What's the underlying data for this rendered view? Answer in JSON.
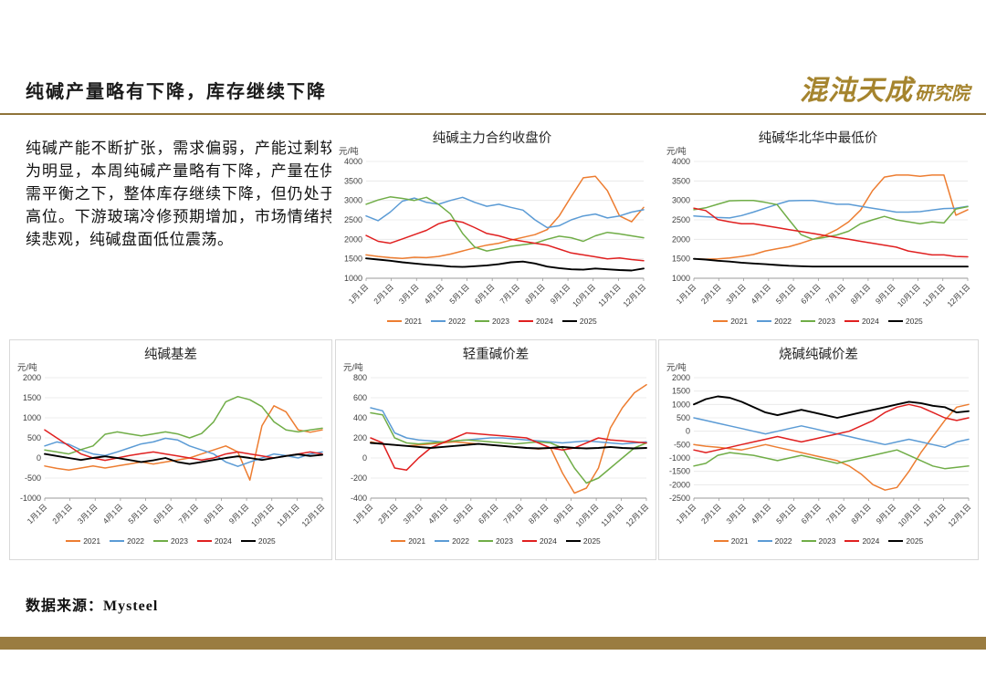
{
  "header": {
    "title": "纯碱产量略有下降，库存继续下降",
    "logo_main": "混沌天成",
    "logo_sub": "研究院"
  },
  "intro": {
    "text": "纯碱产能不断扩张，需求偏弱，产能过剩较为明显，本周纯碱产量略有下降，产量在供需平衡之下，整体库存继续下降，但仍处于高位。下游玻璃冷修预期增加，市场情绪持续悲观，纯碱盘面低位震荡。"
  },
  "source": {
    "label": "数据来源：Mysteel"
  },
  "chart_data": {
    "type": "line",
    "x_tick_labels": [
      "1月1日",
      "2月1日",
      "3月1日",
      "4月1日",
      "5月1日",
      "6月1日",
      "7月1日",
      "8月1日",
      "9月1日",
      "10月1日",
      "11月1日",
      "12月1日"
    ],
    "legend_position": "bottom",
    "charts": [
      {
        "title": "纯碱主力合约收盘价",
        "unit": "元/吨",
        "ylim": [
          1000,
          4000
        ],
        "ystep": 500,
        "series": [
          {
            "name": "2021",
            "color": "#ED7D31",
            "values": [
              1600,
              1560,
              1530,
              1510,
              1540,
              1530,
              1560,
              1620,
              1700,
              1780,
              1850,
              1900,
              1980,
              2050,
              2120,
              2250,
              2600,
              3100,
              3580,
              3620,
              3250,
              2600,
              2450,
              2820
            ]
          },
          {
            "name": "2022",
            "color": "#5B9BD5",
            "values": [
              2600,
              2480,
              2700,
              2980,
              3060,
              2950,
              2900,
              3000,
              3080,
              2950,
              2850,
              2900,
              2820,
              2750,
              2500,
              2300,
              2350,
              2500,
              2600,
              2650,
              2550,
              2600,
              2700,
              2760
            ]
          },
          {
            "name": "2023",
            "color": "#70AD47",
            "values": [
              2900,
              3010,
              3090,
              3050,
              3000,
              3080,
              2900,
              2650,
              2150,
              1800,
              1700,
              1760,
              1820,
              1860,
              1900,
              2000,
              2080,
              2040,
              1950,
              2090,
              2180,
              2140,
              2090,
              2040
            ]
          },
          {
            "name": "2024",
            "color": "#E02020",
            "values": [
              2100,
              1950,
              1900,
              2010,
              2120,
              2230,
              2400,
              2490,
              2440,
              2300,
              2150,
              2090,
              2000,
              1950,
              1900,
              1850,
              1750,
              1650,
              1600,
              1550,
              1500,
              1520,
              1480,
              1450
            ]
          },
          {
            "name": "2025",
            "color": "#000000",
            "values": [
              1510,
              1480,
              1450,
              1410,
              1380,
              1350,
              1330,
              1300,
              1290,
              1310,
              1330,
              1360,
              1410,
              1430,
              1380,
              1300,
              1260,
              1230,
              1220,
              1250,
              1230,
              1210,
              1200,
              1250
            ]
          }
        ]
      },
      {
        "title": "纯碱华北华中最低价",
        "unit": "元/吨",
        "ylim": [
          1000,
          4000
        ],
        "ystep": 500,
        "series": [
          {
            "name": "2021",
            "color": "#ED7D31",
            "values": [
              1500,
              1490,
              1500,
              1520,
              1560,
              1610,
              1700,
              1760,
              1810,
              1900,
              2000,
              2100,
              2250,
              2450,
              2750,
              3250,
              3600,
              3650,
              3650,
              3620,
              3650,
              3650,
              2620,
              2760
            ]
          },
          {
            "name": "2022",
            "color": "#5B9BD5",
            "values": [
              2600,
              2580,
              2560,
              2550,
              2610,
              2700,
              2800,
              2900,
              2990,
              3000,
              3000,
              2950,
              2900,
              2900,
              2850,
              2800,
              2750,
              2700,
              2700,
              2710,
              2750,
              2790,
              2800,
              2850
            ]
          },
          {
            "name": "2023",
            "color": "#70AD47",
            "values": [
              2760,
              2810,
              2900,
              2990,
              3000,
              3000,
              2950,
              2890,
              2500,
              2120,
              2000,
              2050,
              2110,
              2210,
              2400,
              2500,
              2590,
              2500,
              2450,
              2400,
              2450,
              2420,
              2780,
              2840
            ]
          },
          {
            "name": "2024",
            "color": "#E02020",
            "values": [
              2800,
              2740,
              2510,
              2450,
              2400,
              2400,
              2350,
              2300,
              2250,
              2200,
              2150,
              2100,
              2050,
              2000,
              1950,
              1900,
              1850,
              1800,
              1700,
              1650,
              1600,
              1600,
              1560,
              1550
            ]
          },
          {
            "name": "2025",
            "color": "#000000",
            "values": [
              1500,
              1480,
              1450,
              1430,
              1400,
              1380,
              1360,
              1340,
              1320,
              1310,
              1300,
              1300,
              1300,
              1300,
              1300,
              1300,
              1300,
              1300,
              1300,
              1300,
              1300,
              1300,
              1300,
              1300
            ]
          }
        ]
      },
      {
        "title": "纯碱基差",
        "unit": "元/吨",
        "ylim": [
          -1000,
          2000
        ],
        "ystep": 500,
        "series": [
          {
            "name": "2021",
            "color": "#ED7D31",
            "values": [
              -200,
              -260,
              -300,
              -250,
              -200,
              -250,
              -200,
              -150,
              -100,
              -150,
              -100,
              -50,
              0,
              100,
              200,
              300,
              150,
              -550,
              800,
              1300,
              1150,
              700,
              640,
              700
            ]
          },
          {
            "name": "2022",
            "color": "#5B9BD5",
            "values": [
              300,
              400,
              340,
              200,
              100,
              60,
              150,
              250,
              350,
              400,
              490,
              450,
              300,
              200,
              100,
              -100,
              -210,
              -100,
              0,
              100,
              60,
              0,
              100,
              150
            ]
          },
          {
            "name": "2023",
            "color": "#70AD47",
            "values": [
              200,
              150,
              100,
              210,
              300,
              590,
              650,
              600,
              550,
              600,
              650,
              600,
              500,
              610,
              900,
              1400,
              1530,
              1450,
              1280,
              900,
              700,
              650,
              700,
              740
            ]
          },
          {
            "name": "2024",
            "color": "#E02020",
            "values": [
              700,
              500,
              300,
              100,
              0,
              -60,
              0,
              60,
              110,
              150,
              100,
              50,
              0,
              -50,
              0,
              100,
              150,
              100,
              50,
              0,
              50,
              100,
              150,
              100
            ]
          },
          {
            "name": "2025",
            "color": "#000000",
            "values": [
              100,
              50,
              0,
              -50,
              0,
              40,
              0,
              -50,
              -100,
              -60,
              0,
              -100,
              -150,
              -100,
              -50,
              0,
              40,
              0,
              -50,
              0,
              50,
              90,
              50,
              80
            ]
          }
        ]
      },
      {
        "title": "轻重碱价差",
        "unit": "元/吨",
        "ylim": [
          -400,
          800
        ],
        "ystep": 200,
        "series": [
          {
            "name": "2021",
            "color": "#ED7D31",
            "values": [
              160,
              140,
              130,
              120,
              130,
              140,
              150,
              160,
              150,
              140,
              130,
              120,
              110,
              100,
              90,
              100,
              -150,
              -350,
              -300,
              -100,
              300,
              500,
              650,
              730
            ]
          },
          {
            "name": "2022",
            "color": "#5B9BD5",
            "values": [
              500,
              470,
              250,
              200,
              180,
              170,
              160,
              170,
              180,
              190,
              200,
              200,
              190,
              180,
              170,
              160,
              150,
              160,
              170,
              160,
              150,
              140,
              150,
              160
            ]
          },
          {
            "name": "2023",
            "color": "#70AD47",
            "values": [
              450,
              430,
              200,
              150,
              140,
              150,
              160,
              170,
              180,
              170,
              160,
              150,
              140,
              150,
              160,
              150,
              100,
              -100,
              -250,
              -200,
              -100,
              0,
              100,
              150
            ]
          },
          {
            "name": "2024",
            "color": "#E02020",
            "values": [
              200,
              150,
              -100,
              -120,
              0,
              100,
              150,
              200,
              250,
              240,
              230,
              220,
              210,
              200,
              150,
              100,
              80,
              100,
              150,
              200,
              180,
              170,
              160,
              150
            ]
          },
          {
            "name": "2025",
            "color": "#000000",
            "values": [
              150,
              140,
              130,
              120,
              110,
              100,
              110,
              120,
              130,
              140,
              130,
              120,
              110,
              100,
              95,
              100,
              110,
              100,
              95,
              100,
              110,
              100,
              95,
              100
            ]
          }
        ]
      },
      {
        "title": "烧碱纯碱价差",
        "unit": "元/吨",
        "ylim": [
          -2500,
          2000
        ],
        "ystep": 500,
        "series": [
          {
            "name": "2021",
            "color": "#ED7D31",
            "values": [
              -500,
              -560,
              -600,
              -650,
              -700,
              -600,
              -500,
              -600,
              -700,
              -800,
              -900,
              -1000,
              -1100,
              -1300,
              -1600,
              -2000,
              -2200,
              -2100,
              -1500,
              -800,
              -200,
              400,
              900,
              1000
            ]
          },
          {
            "name": "2022",
            "color": "#5B9BD5",
            "values": [
              500,
              400,
              300,
              200,
              100,
              0,
              -100,
              0,
              100,
              200,
              100,
              0,
              -100,
              -200,
              -300,
              -400,
              -500,
              -400,
              -300,
              -400,
              -500,
              -600,
              -400,
              -300
            ]
          },
          {
            "name": "2023",
            "color": "#70AD47",
            "values": [
              -1300,
              -1200,
              -900,
              -800,
              -850,
              -900,
              -1000,
              -1100,
              -1000,
              -900,
              -1000,
              -1100,
              -1200,
              -1100,
              -1000,
              -900,
              -800,
              -700,
              -900,
              -1100,
              -1300,
              -1400,
              -1350,
              -1300
            ]
          },
          {
            "name": "2024",
            "color": "#E02020",
            "values": [
              -700,
              -800,
              -700,
              -600,
              -500,
              -400,
              -300,
              -200,
              -300,
              -400,
              -300,
              -200,
              -100,
              0,
              200,
              400,
              700,
              900,
              1000,
              900,
              700,
              500,
              400,
              500
            ]
          },
          {
            "name": "2025",
            "color": "#000000",
            "values": [
              1000,
              1200,
              1300,
              1250,
              1100,
              900,
              700,
              600,
              700,
              800,
              700,
              600,
              500,
              600,
              700,
              800,
              900,
              1000,
              1100,
              1050,
              950,
              900,
              700,
              750
            ]
          }
        ]
      }
    ]
  }
}
